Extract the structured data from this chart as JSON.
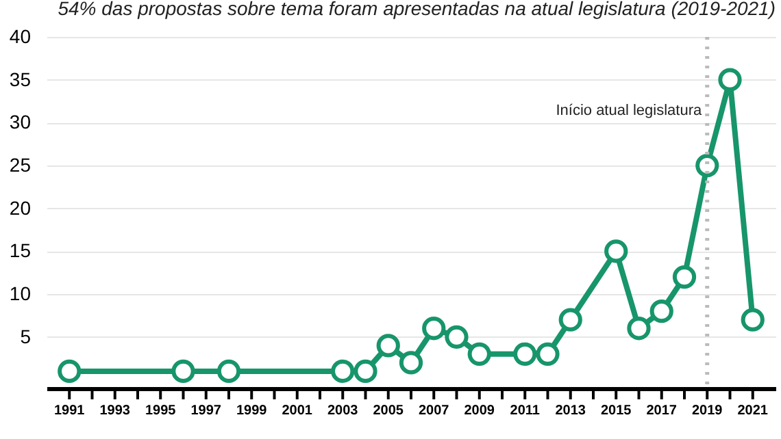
{
  "chart_data": {
    "type": "line",
    "subtitle": "54% das propostas sobre tema foram apresentadas na atual legislatura (2019-2021)",
    "x": [
      1991,
      1996,
      1998,
      2003,
      2004,
      2005,
      2006,
      2007,
      2008,
      2009,
      2011,
      2012,
      2013,
      2015,
      2016,
      2017,
      2018,
      2019,
      2020,
      2021
    ],
    "series": [
      {
        "color": "#17956b",
        "values": [
          1,
          1,
          1,
          1,
          1,
          4,
          2,
          6,
          5,
          3,
          3,
          3,
          7,
          15,
          6,
          8,
          12,
          25,
          35,
          7
        ]
      }
    ],
    "xlim": [
      1990,
      2022
    ],
    "xticks": [
      1991,
      {
        "value": 1992,
        "label": null
      },
      1993,
      {
        "value": 1994,
        "label": null
      },
      1995,
      {
        "value": 1996,
        "label": null
      },
      1997,
      {
        "value": 1998,
        "label": null
      },
      1999,
      {
        "value": 2000,
        "label": null
      },
      2001,
      {
        "value": 2002,
        "label": null
      },
      2003,
      {
        "value": 2004,
        "label": null
      },
      2005,
      {
        "value": 2006,
        "label": null
      },
      2007,
      {
        "value": 2008,
        "label": null
      },
      2009,
      {
        "value": 2010,
        "label": null
      },
      2011,
      {
        "value": 2012,
        "label": null
      },
      2013,
      {
        "value": 2014,
        "label": null
      },
      2015,
      {
        "value": 2016,
        "label": null
      },
      2017,
      {
        "value": 2018,
        "label": null
      },
      2019,
      {
        "value": 2020,
        "label": null
      },
      2021
    ],
    "ylim": [
      -1,
      40
    ],
    "yticks": [
      5,
      10,
      15,
      20,
      25,
      30,
      35,
      40
    ],
    "grid": "y",
    "marker": "circle",
    "line_style": "solid",
    "ref_lines": [
      {
        "axis": "x",
        "value": 2019,
        "label": "Início atual legislatura",
        "color": "#bbbbbb",
        "line_style": "dotted"
      }
    ]
  }
}
